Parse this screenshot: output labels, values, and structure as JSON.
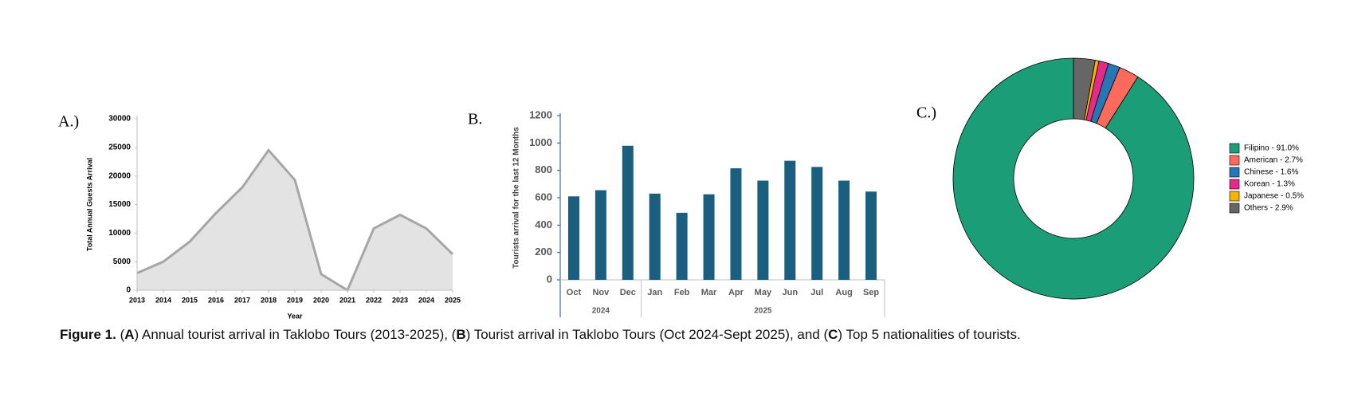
{
  "chart_data": [
    {
      "type": "area",
      "label": "A.)",
      "y_label": "Total Annual Guests Arrival",
      "x_label": "Year",
      "x": [
        2013,
        2014,
        2015,
        2016,
        2017,
        2018,
        2019,
        2020,
        2021,
        2022,
        2023,
        2024,
        2025
      ],
      "values": [
        3000,
        5000,
        8500,
        13500,
        18000,
        24500,
        19300,
        2800,
        0,
        10800,
        13200,
        10800,
        6300
      ],
      "xlim": [
        2013,
        2025
      ],
      "xticks": [
        2013,
        2014,
        2015,
        2016,
        2017,
        2018,
        2019,
        2020,
        2021,
        2022,
        2023,
        2024,
        2025
      ],
      "ylim": [
        0,
        30000
      ],
      "yticks": [
        0,
        5000,
        10000,
        15000,
        20000,
        25000,
        30000
      ],
      "color": "#e3e3e3",
      "line_color": "#a6a6a6"
    },
    {
      "type": "bar",
      "label": "B.",
      "y_label": "Tourists arrival for the last 12 Months",
      "categories": [
        "Oct",
        "Nov",
        "Dec",
        "Jan",
        "Feb",
        "Mar",
        "Apr",
        "May",
        "Jun",
        "Jul",
        "Aug",
        "Sep"
      ],
      "category_groups": [
        "2024",
        "2024",
        "2024",
        "2025",
        "2025",
        "2025",
        "2025",
        "2025",
        "2025",
        "2025",
        "2025",
        "2025"
      ],
      "values": [
        610,
        655,
        980,
        630,
        490,
        625,
        815,
        725,
        870,
        825,
        725,
        645
      ],
      "ylim": [
        0,
        1200
      ],
      "yticks": [
        0,
        200,
        400,
        600,
        800,
        1000,
        1200
      ],
      "color": "#1a5e80"
    },
    {
      "type": "donut",
      "label": "C.)",
      "legend": "right",
      "categories": [
        "Filipino - 91.0%",
        "American - 2.7%",
        "Chinese - 1.6%",
        "Korean - 1.3%",
        "Japanese - 0.5%",
        "Others - 2.9%"
      ],
      "values": [
        91.0,
        2.7,
        1.6,
        1.3,
        0.5,
        2.9
      ],
      "colors": [
        "#1b9e77",
        "#fb6a5a",
        "#2677b3",
        "#e7298a",
        "#f5b400",
        "#666666"
      ]
    }
  ],
  "caption": [
    {
      "text": "Figure 1.",
      "bold": true
    },
    {
      "text": " (",
      "bold": false
    },
    {
      "text": "A",
      "bold": true
    },
    {
      "text": ") Annual tourist arrival in Taklobo Tours (2013-2025), (",
      "bold": false
    },
    {
      "text": "B",
      "bold": true
    },
    {
      "text": ") Tourist arrival in Taklobo Tours (Oct 2024-Sept 2025), and (",
      "bold": false
    },
    {
      "text": "C",
      "bold": true
    },
    {
      "text": ") Top 5 nationalities of tourists.",
      "bold": false
    }
  ]
}
